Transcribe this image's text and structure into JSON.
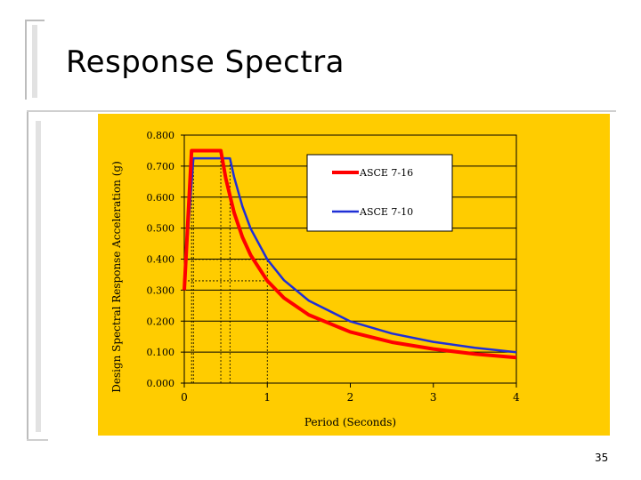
{
  "slide": {
    "title": "Response Spectra",
    "page_number": "35"
  },
  "colors": {
    "chart_background": "#ffcc00",
    "series_asce716": "#ff0000",
    "series_asce710": "#1f2fd6"
  },
  "chart_data": {
    "type": "line",
    "title": "",
    "xlabel": "Period (Seconds)",
    "ylabel": "Design Spectral Response Acceleration (g)",
    "xlim": [
      0,
      4
    ],
    "ylim": [
      0,
      0.8
    ],
    "xticks": [
      "0",
      "1",
      "2",
      "3",
      "4"
    ],
    "yticks": [
      "0.000",
      "0.100",
      "0.200",
      "0.300",
      "0.400",
      "0.500",
      "0.600",
      "0.700",
      "0.800"
    ],
    "grid": true,
    "legend_position": "top-right",
    "series": [
      {
        "name": "ASCE 7-16",
        "color": "#ff0000",
        "x": [
          0,
          0.088,
          0.44,
          0.5,
          0.6,
          0.7,
          0.8,
          1.0,
          1.2,
          1.5,
          2.0,
          2.5,
          3.0,
          3.5,
          4.0
        ],
        "y": [
          0.3,
          0.75,
          0.75,
          0.66,
          0.55,
          0.471,
          0.4125,
          0.33,
          0.275,
          0.22,
          0.165,
          0.132,
          0.11,
          0.094,
          0.0825
        ]
      },
      {
        "name": "ASCE 7-10",
        "color": "#1f2fd6",
        "x": [
          0,
          0.11,
          0.55,
          0.6,
          0.7,
          0.8,
          1.0,
          1.2,
          1.5,
          2.0,
          2.5,
          3.0,
          3.5,
          4.0
        ],
        "y": [
          0.33,
          0.725,
          0.725,
          0.665,
          0.57,
          0.498,
          0.399,
          0.332,
          0.266,
          0.199,
          0.16,
          0.133,
          0.114,
          0.0997
        ]
      }
    ],
    "reference_lines": [
      {
        "x": [
          0.088,
          0.088
        ],
        "y": [
          0,
          0.75
        ]
      },
      {
        "x": [
          0.11,
          0.11
        ],
        "y": [
          0,
          0.725
        ]
      },
      {
        "x": [
          0.44,
          0.44
        ],
        "y": [
          0,
          0.75
        ]
      },
      {
        "x": [
          0.55,
          0.55
        ],
        "y": [
          0,
          0.725
        ]
      },
      {
        "x": [
          0,
          1.0
        ],
        "y": [
          0.399,
          0.399
        ]
      },
      {
        "x": [
          1.0,
          1.0
        ],
        "y": [
          0,
          0.399
        ]
      },
      {
        "x": [
          0,
          1.0
        ],
        "y": [
          0.33,
          0.33
        ]
      }
    ]
  }
}
